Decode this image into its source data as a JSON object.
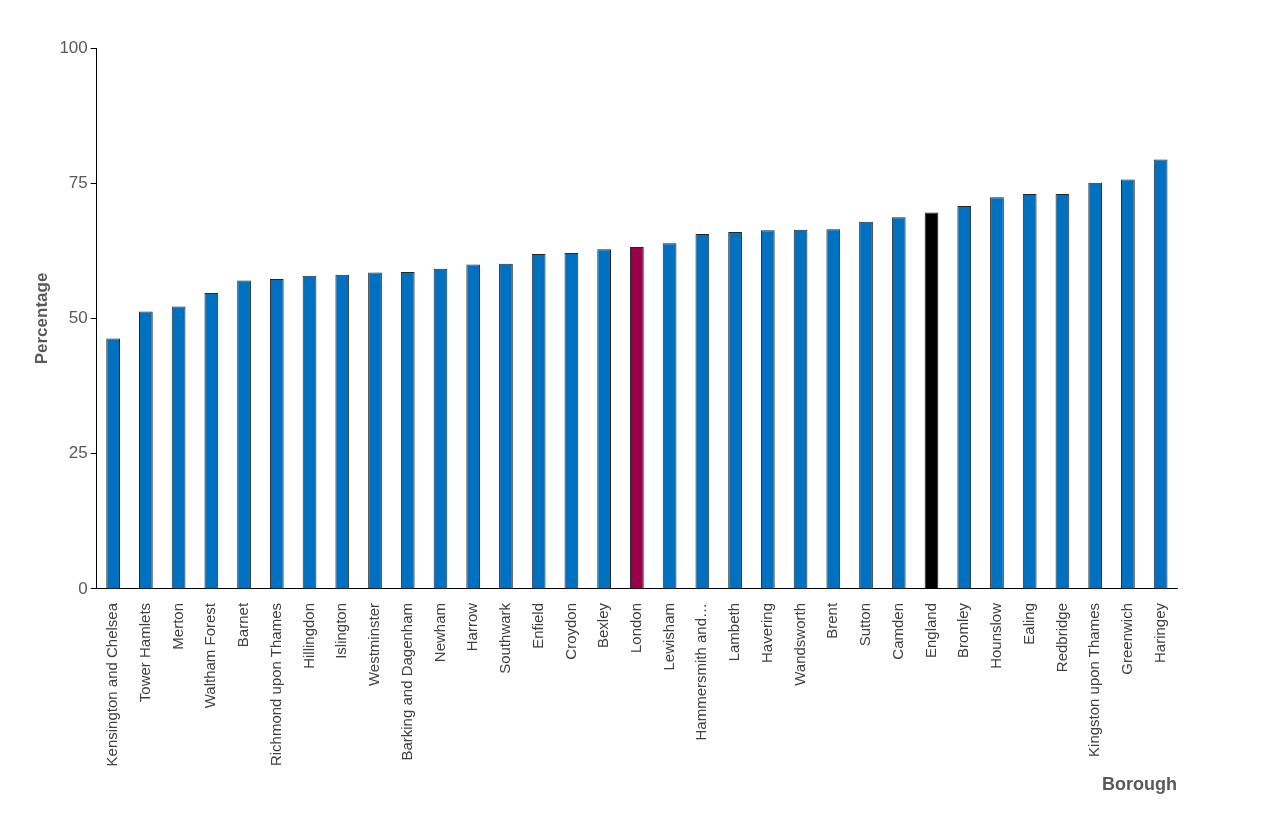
{
  "chart_data": {
    "type": "bar",
    "xlabel": "Borough",
    "ylabel": "Percentage",
    "categories": [
      "Kensington and Chelsea",
      "Tower Hamlets",
      "Merton",
      "Waltham Forest",
      "Barnet",
      "Richmond upon Thames",
      "Hillingdon",
      "Islington",
      "Westminster",
      "Barking and Dagenham",
      "Newham",
      "Harrow",
      "Southwark",
      "Enfield",
      "Croydon",
      "Bexley",
      "London",
      "Lewisham",
      "Hammersmith and…",
      "Lambeth",
      "Havering",
      "Wandsworth",
      "Brent",
      "Sutton",
      "Camden",
      "England",
      "Bromley",
      "Hounslow",
      "Ealing",
      "Redbridge",
      "Kingston upon Thames",
      "Greenwich",
      "Haringey"
    ],
    "values": [
      46.3,
      51.3,
      52.2,
      54.7,
      57.0,
      57.3,
      57.9,
      58.1,
      58.5,
      58.6,
      59.2,
      60.0,
      60.1,
      61.9,
      62.1,
      62.8,
      63.2,
      63.9,
      65.6,
      66.0,
      66.3,
      66.4,
      66.5,
      67.9,
      68.7,
      69.6,
      70.8,
      72.4,
      73.0,
      73.0,
      75.1,
      75.7,
      79.4
    ],
    "colors": [
      "#0070c0",
      "#0070c0",
      "#0070c0",
      "#0070c0",
      "#0070c0",
      "#0070c0",
      "#0070c0",
      "#0070c0",
      "#0070c0",
      "#0070c0",
      "#0070c0",
      "#0070c0",
      "#0070c0",
      "#0070c0",
      "#0070c0",
      "#0070c0",
      "#990047",
      "#0070c0",
      "#0070c0",
      "#0070c0",
      "#0070c0",
      "#0070c0",
      "#0070c0",
      "#0070c0",
      "#0070c0",
      "#000000",
      "#0070c0",
      "#0070c0",
      "#0070c0",
      "#0070c0",
      "#0070c0",
      "#0070c0",
      "#0070c0"
    ],
    "ylim": [
      0,
      100
    ],
    "yticks": [
      0,
      25,
      50,
      75,
      100
    ],
    "grid": false,
    "legend": false
  }
}
